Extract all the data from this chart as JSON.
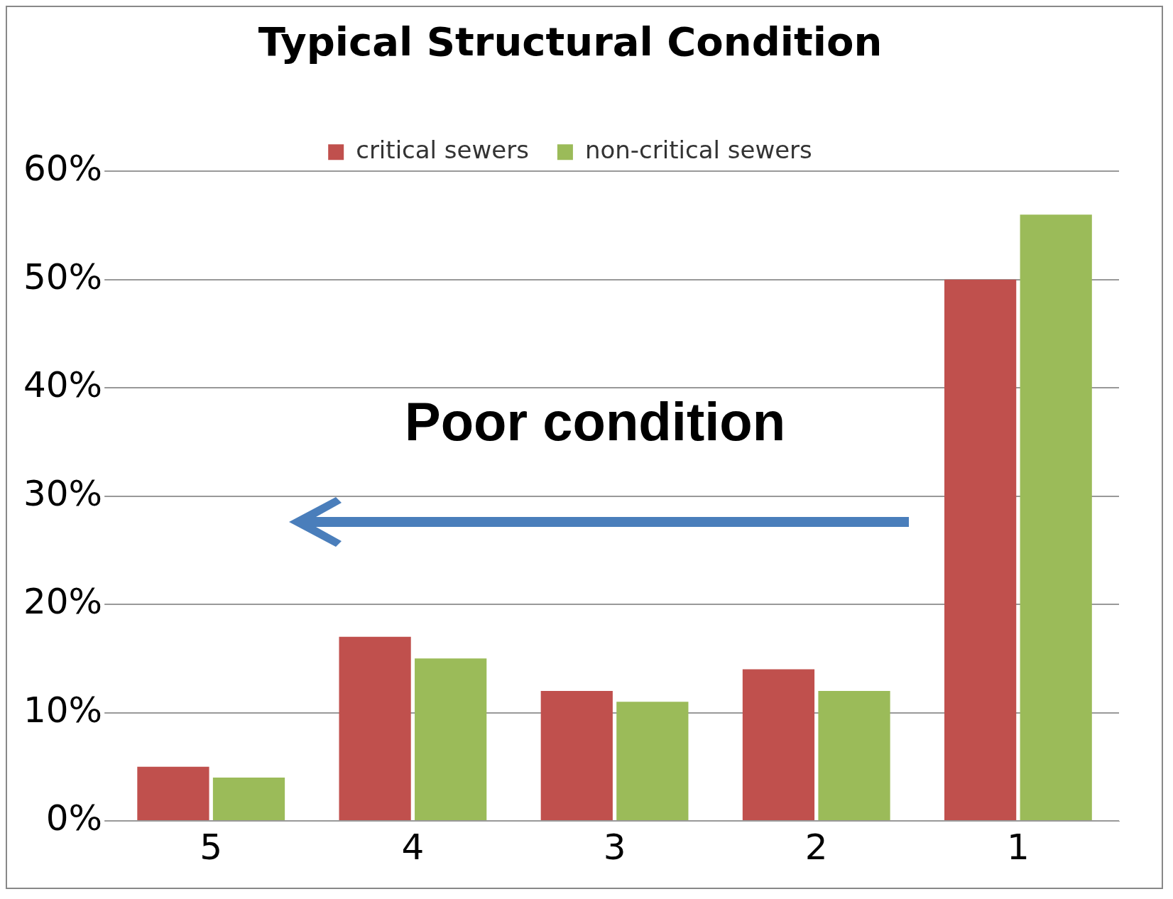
{
  "chart_data": {
    "type": "bar",
    "title": "Typical Structural Condition",
    "categories": [
      "5",
      "4",
      "3",
      "2",
      "1"
    ],
    "series": [
      {
        "name": "critical sewers",
        "color": "#c0504d",
        "values": [
          5,
          17,
          12,
          14,
          50
        ]
      },
      {
        "name": "non-critical sewers",
        "color": "#9bbb59",
        "values": [
          4,
          15,
          11,
          12,
          56
        ]
      }
    ],
    "ylim": [
      0,
      60
    ],
    "yticks": [
      {
        "value": 0,
        "label": "0%"
      },
      {
        "value": 10,
        "label": "10%"
      },
      {
        "value": 20,
        "label": "20%"
      },
      {
        "value": 30,
        "label": "30%"
      },
      {
        "value": 40,
        "label": "40%"
      },
      {
        "value": 50,
        "label": "50%"
      },
      {
        "value": 60,
        "label": "60%"
      }
    ],
    "grid": "y",
    "legend": "top",
    "annotations": [
      "Poor condition"
    ]
  }
}
